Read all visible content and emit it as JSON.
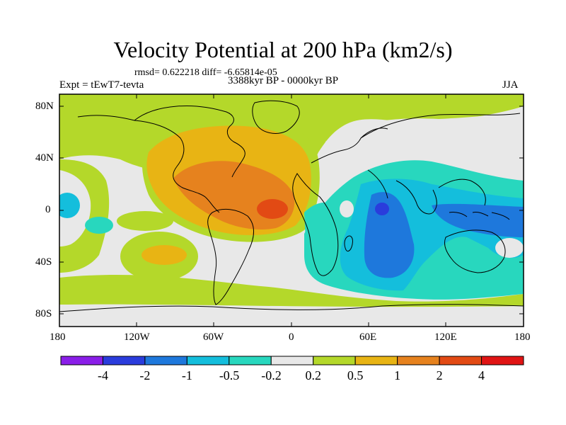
{
  "title": "Velocity Potential at 200 hPa (km2/s)",
  "stats": "rmsd= 0.622218 diff= -6.65814e-05",
  "experiment": "Expt = tEwT7-tevta",
  "period": "3388kyr BP - 0000kyr BP",
  "season": "JJA",
  "y_axis_labels": [
    "80N",
    "40N",
    "0",
    "40S",
    "80S"
  ],
  "x_axis_labels": [
    "180",
    "120W",
    "60W",
    "0",
    "60E",
    "120E",
    "180"
  ],
  "colorbar": {
    "labels": [
      "-4",
      "-2",
      "-1",
      "-0.5",
      "-0.2",
      "0.2",
      "0.5",
      "1",
      "2",
      "4"
    ],
    "colors": [
      "#8a1ee8",
      "#2a3cdc",
      "#1e78dc",
      "#14bedc",
      "#28d7be",
      "#e8e8e8",
      "#b4d82a",
      "#e8b414",
      "#e6821e",
      "#e24a14",
      "#e01414"
    ]
  }
}
